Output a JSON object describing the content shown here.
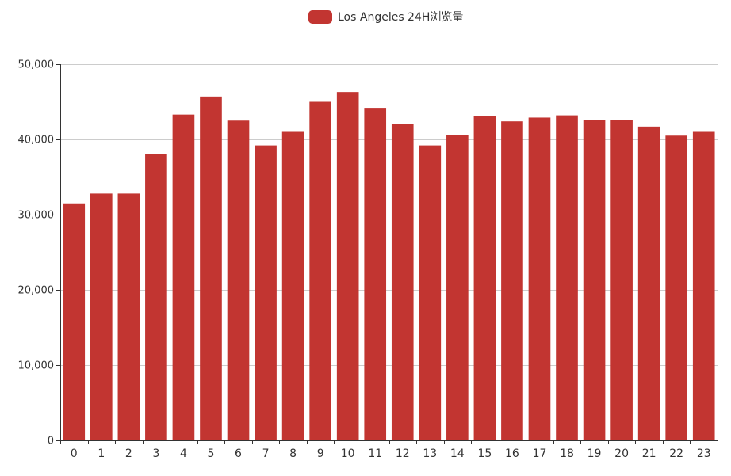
{
  "chart_data": {
    "type": "bar",
    "categories": [
      "0",
      "1",
      "2",
      "3",
      "4",
      "5",
      "6",
      "7",
      "8",
      "9",
      "10",
      "11",
      "12",
      "13",
      "14",
      "15",
      "16",
      "17",
      "18",
      "19",
      "20",
      "21",
      "22",
      "23"
    ],
    "series": [
      {
        "name": "Los Angeles 24H浏览量",
        "values": [
          31500,
          32800,
          32800,
          38100,
          43300,
          45700,
          42500,
          39200,
          41000,
          45000,
          46300,
          44200,
          42100,
          39200,
          40600,
          43100,
          42400,
          42900,
          43200,
          42600,
          42600,
          41700,
          40500,
          41000
        ]
      }
    ],
    "title": "",
    "xlabel": "",
    "ylabel": "",
    "ylim": [
      0,
      50000
    ],
    "yticks": [
      0,
      10000,
      20000,
      30000,
      40000,
      50000
    ],
    "ytick_labels": [
      "0",
      "10,000",
      "20,000",
      "30,000",
      "40,000",
      "50,000"
    ],
    "legend_position": "top-center",
    "grid": true,
    "colors": {
      "bar": "#c23531",
      "gridline": "#cccccc",
      "axis": "#333333",
      "text": "#333333"
    }
  }
}
